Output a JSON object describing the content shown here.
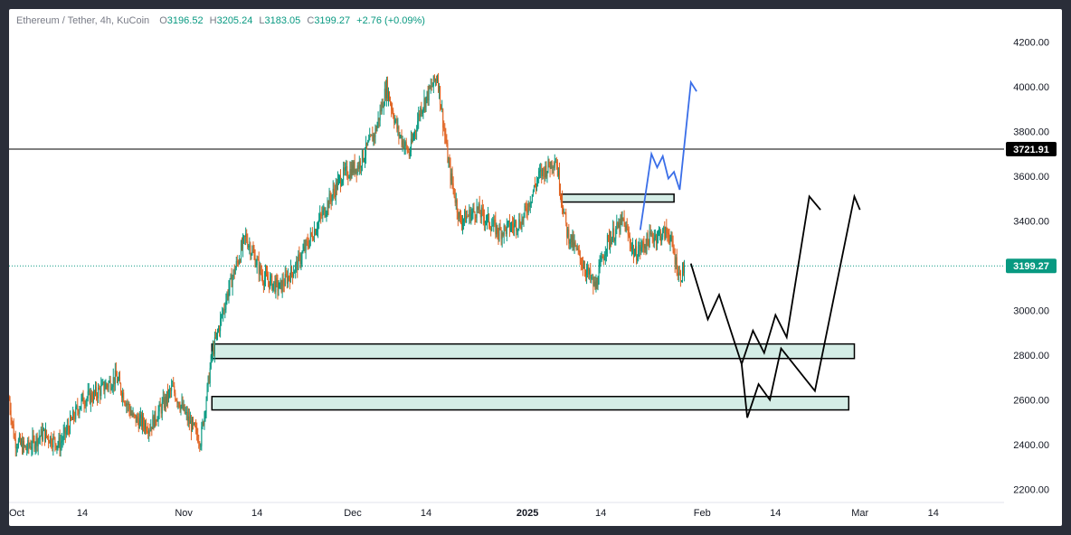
{
  "header": {
    "symbol": "Ethereum / Tether, 4h, KuCoin",
    "open_label": "O",
    "open": "3196.52",
    "high_label": "H",
    "high": "3205.24",
    "low_label": "L",
    "low": "3183.05",
    "close_label": "C",
    "close": "3199.27",
    "change": "+2.76 (+0.09%)"
  },
  "price_labels": {
    "level": "3721.91",
    "current": "3199.27"
  },
  "colors": {
    "up": "#089981",
    "down": "#f23645",
    "wick_orange": "#e0611f",
    "zone_fill": "#d4ede6",
    "projection": "#000000",
    "projection_alt": "#3a6ee8",
    "current_price": "#089981"
  },
  "chart_data": {
    "type": "candlestick",
    "title": "Ethereum / Tether, 4h, KuCoin",
    "ylim": [
      2150,
      4230
    ],
    "y_ticks": [
      "2200.00",
      "2400.00",
      "2600.00",
      "2800.00",
      "3000.00",
      "3200.00",
      "3400.00",
      "3600.00",
      "3800.00",
      "4000.00",
      "4200.00"
    ],
    "x_ticks": [
      {
        "label": "Oct",
        "bold": false
      },
      {
        "label": "14",
        "bold": false
      },
      {
        "label": "Nov",
        "bold": false
      },
      {
        "label": "14",
        "bold": false
      },
      {
        "label": "Dec",
        "bold": false
      },
      {
        "label": "14",
        "bold": false
      },
      {
        "label": "2025",
        "bold": true
      },
      {
        "label": "14",
        "bold": false
      },
      {
        "label": "Feb",
        "bold": false
      },
      {
        "label": "14",
        "bold": false
      },
      {
        "label": "Mar",
        "bold": false
      },
      {
        "label": "14",
        "bold": false
      }
    ],
    "price_path": [
      {
        "d": "Oct 1",
        "p": 2600
      },
      {
        "d": "Oct 2",
        "p": 2420
      },
      {
        "d": "Oct 4",
        "p": 2380
      },
      {
        "d": "Oct 7",
        "p": 2450
      },
      {
        "d": "Oct 10",
        "p": 2400
      },
      {
        "d": "Oct 14",
        "p": 2600
      },
      {
        "d": "Oct 16",
        "p": 2620
      },
      {
        "d": "Oct 20",
        "p": 2700
      },
      {
        "d": "Oct 23",
        "p": 2520
      },
      {
        "d": "Oct 26",
        "p": 2480
      },
      {
        "d": "Oct 30",
        "p": 2650
      },
      {
        "d": "Nov 2",
        "p": 2500
      },
      {
        "d": "Nov 4",
        "p": 2420
      },
      {
        "d": "Nov 6",
        "p": 2800
      },
      {
        "d": "Nov 9",
        "p": 3100
      },
      {
        "d": "Nov 12",
        "p": 3330
      },
      {
        "d": "Nov 15",
        "p": 3150
      },
      {
        "d": "Nov 18",
        "p": 3100
      },
      {
        "d": "Nov 21",
        "p": 3200
      },
      {
        "d": "Nov 25",
        "p": 3400
      },
      {
        "d": "Nov 29",
        "p": 3600
      },
      {
        "d": "Dec 2",
        "p": 3650
      },
      {
        "d": "Dec 5",
        "p": 3800
      },
      {
        "d": "Dec 7",
        "p": 4000
      },
      {
        "d": "Dec 9",
        "p": 3800
      },
      {
        "d": "Dec 11",
        "p": 3700
      },
      {
        "d": "Dec 13",
        "p": 3900
      },
      {
        "d": "Dec 16",
        "p": 4050
      },
      {
        "d": "Dec 18",
        "p": 3650
      },
      {
        "d": "Dec 20",
        "p": 3400
      },
      {
        "d": "Dec 23",
        "p": 3450
      },
      {
        "d": "Dec 27",
        "p": 3350
      },
      {
        "d": "Dec 31",
        "p": 3400
      },
      {
        "d": "Jan 3",
        "p": 3600
      },
      {
        "d": "Jan 6",
        "p": 3680
      },
      {
        "d": "Jan 8",
        "p": 3350
      },
      {
        "d": "Jan 10",
        "p": 3250
      },
      {
        "d": "Jan 13",
        "p": 3100
      },
      {
        "d": "Jan 15",
        "p": 3300
      },
      {
        "d": "Jan 18",
        "p": 3400
      },
      {
        "d": "Jan 20",
        "p": 3250
      },
      {
        "d": "Jan 23",
        "p": 3330
      },
      {
        "d": "Jan 26",
        "p": 3350
      },
      {
        "d": "Jan 28",
        "p": 3150
      },
      {
        "d": "Jan 29",
        "p": 3199.27
      }
    ],
    "zones": [
      {
        "label": "upper small zone",
        "y_top": 3520,
        "y_bottom": 3485,
        "x_start": "Jan 7",
        "x_end": "Jan 27"
      },
      {
        "label": "middle zone",
        "y_top": 2850,
        "y_bottom": 2785,
        "x_start": "Nov 6",
        "x_end": "Feb 28"
      },
      {
        "label": "lower zone",
        "y_top": 2615,
        "y_bottom": 2555,
        "x_start": "Nov 6",
        "x_end": "Feb 27"
      }
    ],
    "horizontal_levels": [
      {
        "value": 3721.91,
        "style": "solid"
      },
      {
        "value": 3199.27,
        "style": "dotted"
      }
    ],
    "projections": [
      {
        "name": "blue",
        "points": [
          [
            "Jan 21",
            3360
          ],
          [
            "Jan 23",
            3700
          ],
          [
            "Jan 24",
            3640
          ],
          [
            "Jan 25",
            3690
          ],
          [
            "Jan 26",
            3590
          ],
          [
            "Jan 27",
            3620
          ],
          [
            "Jan 28",
            3540
          ],
          [
            "Jan 30",
            4020
          ],
          [
            "Jan 31",
            3980
          ]
        ]
      },
      {
        "name": "black-1",
        "points": [
          [
            "Jan 30",
            3210
          ],
          [
            "Feb 2",
            2960
          ],
          [
            "Feb 4",
            3070
          ],
          [
            "Feb 8",
            2760
          ],
          [
            "Feb 10",
            2910
          ],
          [
            "Feb 12",
            2810
          ],
          [
            "Feb 14",
            2980
          ],
          [
            "Feb 16",
            2880
          ],
          [
            "Feb 20",
            3510
          ],
          [
            "Feb 22",
            3450
          ]
        ]
      },
      {
        "name": "black-2",
        "points": [
          [
            "Feb 8",
            2760
          ],
          [
            "Feb 9",
            2520
          ],
          [
            "Feb 11",
            2670
          ],
          [
            "Feb 13",
            2600
          ],
          [
            "Feb 15",
            2830
          ],
          [
            "Feb 21",
            2640
          ],
          [
            "Feb 28",
            3510
          ],
          [
            "Mar 1",
            3450
          ]
        ]
      }
    ]
  }
}
